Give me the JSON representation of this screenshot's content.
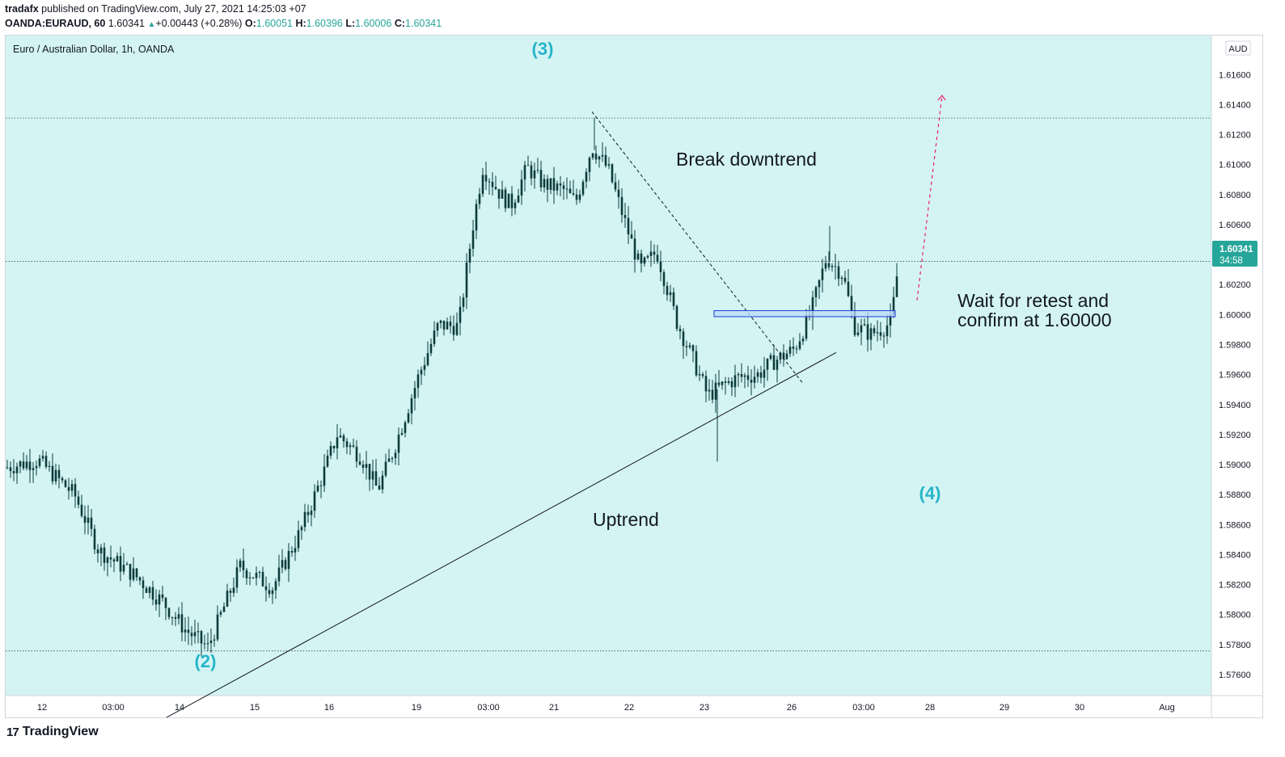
{
  "header": {
    "author": "tradafx",
    "published": " published on TradingView.com, July 27, 2021 14:25:03 +07",
    "symbol": "OANDA:EURAUD, 60",
    "last": "1.60341",
    "change": "+0.00443 (+0.28%)",
    "o_label": "O:",
    "o": "1.60051",
    "h_label": "H:",
    "h": "1.60396",
    "l_label": "L:",
    "l": "1.60006",
    "c_label": "C:",
    "c": "1.60341"
  },
  "chart_title": "Euro / Australian Dollar, 1h, OANDA",
  "currency_badge": "AUD",
  "price_tag": {
    "price": "1.60341",
    "countdown": "34:58"
  },
  "annotations": {
    "wave3": "(3)",
    "wave2": "(2)",
    "wave4": "(4)",
    "break_downtrend": "Break downtrend",
    "uptrend": "Uptrend",
    "wait_line1": "Wait for retest and",
    "wait_line2": "confirm at 1.60000"
  },
  "footer": {
    "brand": "TradingView",
    "mark": "17"
  },
  "colors": {
    "background": "#d4f4f4",
    "candle": "#0d3b3b",
    "accent": "#26a69a",
    "wave_label": "#26b5c9",
    "zone_fill": "#bbdefb",
    "zone_border": "#1e3bd4",
    "projection": "#e91e63"
  },
  "chart_data": {
    "type": "candlestick",
    "title": "Euro / Australian Dollar, 1h, OANDA",
    "ylim": [
      1.5746,
      1.6186
    ],
    "y_ticks": [
      "1.61600",
      "1.61400",
      "1.61200",
      "1.61000",
      "1.60800",
      "1.60600",
      "1.60400",
      "1.60200",
      "1.60000",
      "1.59800",
      "1.59600",
      "1.59400",
      "1.59200",
      "1.59000",
      "1.58800",
      "1.58600",
      "1.58400",
      "1.58200",
      "1.58000",
      "1.57800",
      "1.57600"
    ],
    "x_ticks": [
      "12",
      "03:00",
      "14",
      "15",
      "16",
      "19",
      "03:00",
      "21",
      "22",
      "23",
      "26",
      "03:00",
      "28",
      "29",
      "30",
      "Aug"
    ],
    "horizontal_levels": [
      1.6131,
      1.60355,
      1.57758
    ],
    "retest_zone": [
      1.59986,
      1.60026
    ],
    "trendline_uptrend": [
      [
        "14 03:00",
        1.57247
      ],
      [
        "26 03:00",
        1.59747
      ]
    ],
    "trendline_downtrend": [
      [
        "21 12:00",
        1.61352
      ],
      [
        "26 00:00",
        1.59547
      ]
    ],
    "projection_target": 1.61461,
    "swing_points": [
      {
        "label": "start",
        "price": 1.5898
      },
      {
        "label": "(2) low",
        "price": 1.5776
      },
      {
        "label": "high 16",
        "price": 1.5925
      },
      {
        "label": "pullback",
        "price": 1.5875
      },
      {
        "label": "(3) high",
        "price": 1.6131
      },
      {
        "label": "low 23",
        "price": 1.5902
      },
      {
        "label": "high 26",
        "price": 1.6059
      },
      {
        "label": "last",
        "price": 1.60341
      }
    ]
  }
}
